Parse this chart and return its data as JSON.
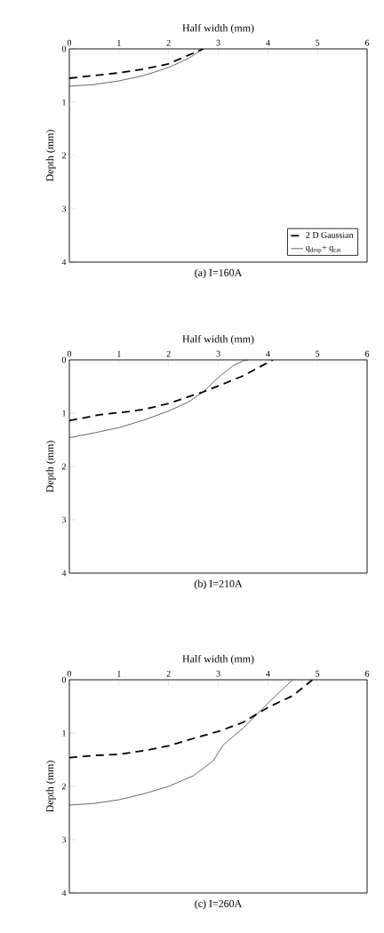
{
  "chart_data": [
    {
      "type": "line",
      "title": "(a) I=160A",
      "xlabel": "Half width (mm)",
      "ylabel": "Depth (mm)",
      "xlim": [
        0,
        6
      ],
      "ylim": [
        4,
        0
      ],
      "xticks": [
        0,
        1,
        2,
        3,
        4,
        5,
        6
      ],
      "yticks": [
        0,
        1,
        2,
        3,
        4
      ],
      "legend": "bottom right",
      "grid": false,
      "series": [
        {
          "name": "2 D Gaussian",
          "color": "#000000",
          "line_style": "dashed",
          "x": [
            0,
            0.5,
            1,
            1.5,
            2,
            2.4,
            2.7
          ],
          "values": [
            0.55,
            0.5,
            0.45,
            0.38,
            0.28,
            0.12,
            0
          ]
        },
        {
          "name": "q$_{drop}$+ q$_{cat}$",
          "color": "#000000",
          "line_style": "solid",
          "x": [
            0,
            0.5,
            1,
            1.5,
            2,
            2.4,
            2.7
          ],
          "values": [
            0.7,
            0.67,
            0.6,
            0.5,
            0.35,
            0.18,
            0
          ]
        }
      ]
    },
    {
      "type": "line",
      "title": "(b) I=210A",
      "xlabel": "Half width (mm)",
      "ylabel": "Depth (mm)",
      "xlim": [
        0,
        6
      ],
      "ylim": [
        4,
        0
      ],
      "xticks": [
        0,
        1,
        2,
        3,
        4,
        5,
        6
      ],
      "yticks": [
        0,
        1,
        2,
        3,
        4
      ],
      "grid": false,
      "series": [
        {
          "color": "#000000",
          "line_style": "dashed",
          "x": [
            0,
            0.6,
            1.2,
            1.5,
            2,
            2.5,
            2.7,
            3,
            3.5,
            4.1
          ],
          "values": [
            1.14,
            1.03,
            0.97,
            0.93,
            0.82,
            0.66,
            0.6,
            0.49,
            0.3,
            0
          ]
        },
        {
          "color": "#000000",
          "line_style": "solid",
          "x": [
            0,
            0.5,
            1,
            1.5,
            2,
            2.4,
            2.7,
            3,
            3.3,
            3.5,
            3.6
          ],
          "values": [
            1.46,
            1.37,
            1.27,
            1.13,
            0.96,
            0.79,
            0.6,
            0.33,
            0.11,
            0.02,
            0
          ]
        }
      ]
    },
    {
      "type": "line",
      "title": "(c) I=260A",
      "xlabel": "Half width (mm)",
      "ylabel": "Depth (mm)",
      "xlim": [
        0,
        6
      ],
      "ylim": [
        4,
        0
      ],
      "xticks": [
        0,
        1,
        2,
        3,
        4,
        5,
        6
      ],
      "yticks": [
        0,
        1,
        2,
        3,
        4
      ],
      "grid": false,
      "series": [
        {
          "color": "#000000",
          "line_style": "dashed",
          "x": [
            0,
            0.5,
            1,
            1.5,
            2,
            2.5,
            3,
            3.5,
            4,
            4.5,
            4.9
          ],
          "values": [
            1.46,
            1.42,
            1.4,
            1.33,
            1.24,
            1.1,
            0.97,
            0.8,
            0.52,
            0.3,
            0
          ]
        },
        {
          "color": "#000000",
          "line_style": "solid",
          "x": [
            0,
            0.5,
            1,
            1.5,
            2,
            2.5,
            2.9,
            3.1,
            3.5,
            4,
            4.5
          ],
          "values": [
            2.35,
            2.32,
            2.25,
            2.14,
            2.0,
            1.8,
            1.52,
            1.22,
            0.91,
            0.44,
            0
          ]
        }
      ]
    }
  ]
}
